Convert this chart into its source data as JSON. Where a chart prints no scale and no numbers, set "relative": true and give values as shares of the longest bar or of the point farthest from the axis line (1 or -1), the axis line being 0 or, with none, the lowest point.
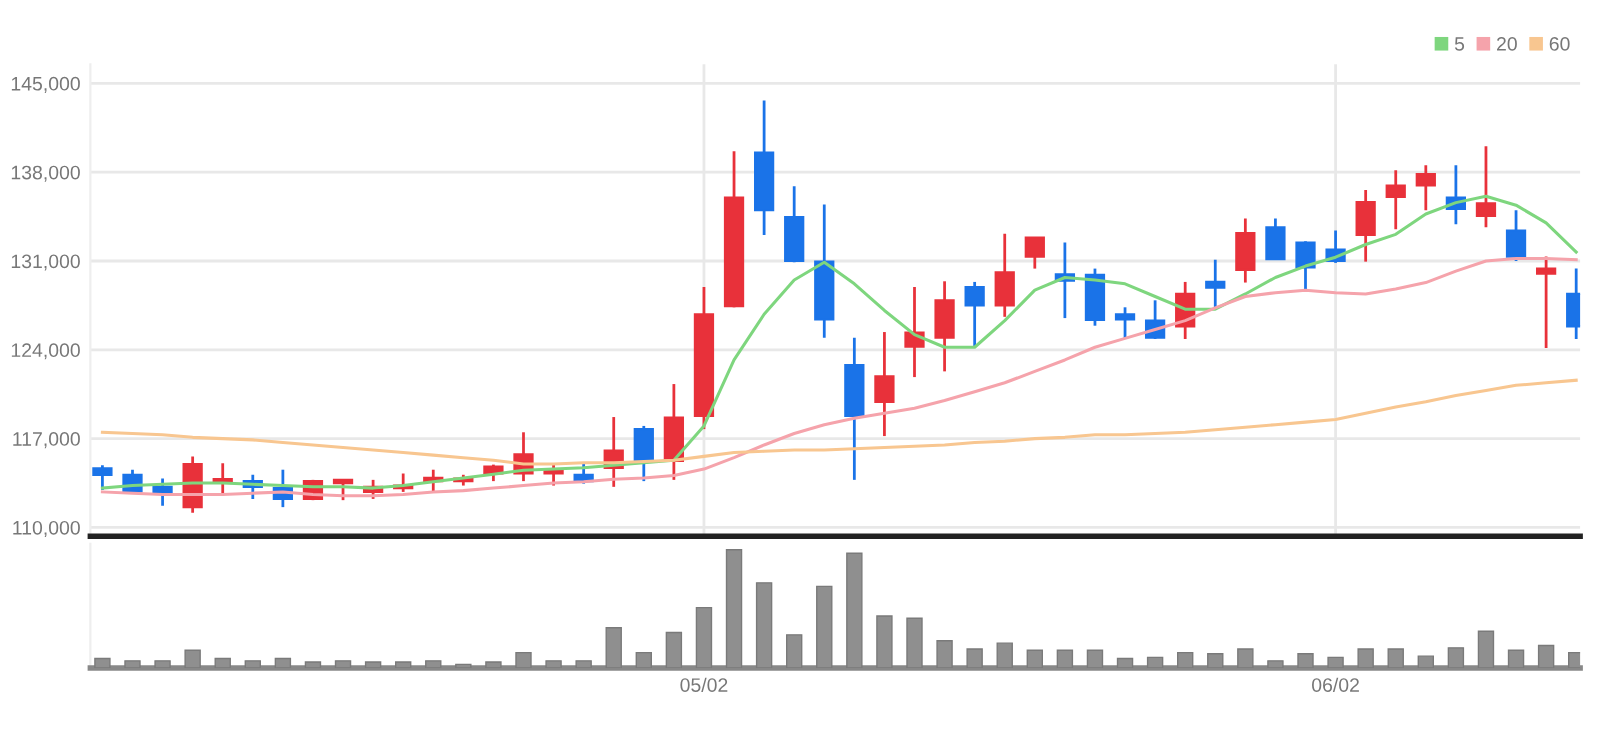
{
  "chart_data": [
    {
      "type": "candlestick",
      "categories": [
        null,
        null,
        null,
        null,
        null,
        null,
        null,
        null,
        null,
        null,
        null,
        null,
        null,
        null,
        null,
        null,
        null,
        null,
        null,
        null,
        null,
        null,
        null,
        null,
        null,
        null,
        null,
        null,
        null,
        null,
        null,
        null,
        null,
        null,
        null,
        null,
        null,
        null,
        null,
        null,
        null,
        null,
        null,
        null,
        null,
        null,
        null,
        null,
        null,
        null
      ],
      "ohlc": [
        [
          114650,
          114900,
          112950,
          114150
        ],
        [
          114150,
          114550,
          112650,
          112850
        ],
        [
          113200,
          113850,
          111700,
          112650
        ],
        [
          111600,
          115600,
          111150,
          115000
        ],
        [
          113600,
          115050,
          112650,
          113800
        ],
        [
          113650,
          114150,
          112250,
          113200
        ],
        [
          113100,
          114550,
          111600,
          112250
        ],
        [
          112250,
          113750,
          112150,
          113650
        ],
        [
          113500,
          113750,
          112150,
          113750
        ],
        [
          112800,
          113750,
          112250,
          113200
        ],
        [
          113100,
          114250,
          112800,
          113300
        ],
        [
          113650,
          114550,
          112800,
          113900
        ],
        [
          113650,
          114150,
          113300,
          113850
        ],
        [
          114250,
          114950,
          113650,
          114800
        ],
        [
          114250,
          117500,
          113650,
          115750
        ],
        [
          114250,
          115050,
          113300,
          114550
        ],
        [
          114150,
          115050,
          113450,
          113650
        ],
        [
          114700,
          118700,
          113200,
          116050
        ],
        [
          117750,
          118000,
          113650,
          115250
        ],
        [
          115250,
          121300,
          113750,
          118650
        ],
        [
          118800,
          128950,
          117750,
          126800
        ],
        [
          127450,
          139650,
          127350,
          136000
        ],
        [
          139550,
          143650,
          133050,
          135000
        ],
        [
          134450,
          136900,
          130900,
          131000
        ],
        [
          130950,
          135450,
          124950,
          126400
        ],
        [
          122800,
          124950,
          113750,
          118800
        ],
        [
          119900,
          125400,
          117200,
          121900
        ],
        [
          124250,
          128950,
          121850,
          125350
        ],
        [
          124950,
          129400,
          122300,
          127900
        ],
        [
          128950,
          129350,
          124300,
          127500
        ],
        [
          127500,
          133150,
          126600,
          130100
        ],
        [
          131350,
          132850,
          130400,
          132850
        ],
        [
          129950,
          132450,
          126500,
          129450
        ],
        [
          129900,
          130400,
          125900,
          126350
        ],
        [
          126800,
          127350,
          124850,
          126400
        ],
        [
          126300,
          127900,
          124850,
          124950
        ],
        [
          125850,
          129350,
          124850,
          128400
        ],
        [
          129350,
          131100,
          127350,
          128900
        ],
        [
          130300,
          134350,
          129300,
          133200
        ],
        [
          133650,
          134350,
          131150,
          131150
        ],
        [
          132450,
          132550,
          128600,
          130500
        ],
        [
          131900,
          133400,
          130850,
          131000
        ],
        [
          133050,
          136600,
          130950,
          135650
        ],
        [
          136050,
          138150,
          133500,
          136950
        ],
        [
          136950,
          138550,
          135000,
          137850
        ],
        [
          136000,
          138550,
          133900,
          135100
        ],
        [
          134550,
          140050,
          133650,
          135550
        ],
        [
          133400,
          135000,
          131000,
          131350
        ],
        [
          130000,
          131350,
          124150,
          130400
        ],
        [
          128400,
          130400,
          124850,
          125850
        ]
      ],
      "colors": [
        "#1a73e8",
        "#1a73e8",
        "#1a73e8",
        "#e8313a",
        "#e8313a",
        "#1a73e8",
        "#1a73e8",
        "#e8313a",
        "#e8313a",
        "#e8313a",
        "#e8313a",
        "#e8313a",
        "#e8313a",
        "#e8313a",
        "#e8313a",
        "#e8313a",
        "#1a73e8",
        "#e8313a",
        "#1a73e8",
        "#e8313a",
        "#e8313a",
        "#e8313a",
        "#1a73e8",
        "#1a73e8",
        "#1a73e8",
        "#1a73e8",
        "#e8313a",
        "#e8313a",
        "#e8313a",
        "#1a73e8",
        "#e8313a",
        "#e8313a",
        "#1a73e8",
        "#1a73e8",
        "#1a73e8",
        "#1a73e8",
        "#e8313a",
        "#1a73e8",
        "#e8313a",
        "#1a73e8",
        "#1a73e8",
        "#1a73e8",
        "#e8313a",
        "#e8313a",
        "#e8313a",
        "#1a73e8",
        "#e8313a",
        "#1a73e8",
        "#e8313a",
        "#1a73e8"
      ],
      "series": [
        {
          "name": "5",
          "type": "line",
          "color": "#7ed67e",
          "values": [
            113100,
            113300,
            113400,
            113500,
            113500,
            113400,
            113300,
            113200,
            113200,
            113100,
            113300,
            113600,
            113900,
            114200,
            114500,
            114600,
            114700,
            114900,
            115100,
            115300,
            118000,
            123200,
            126800,
            129500,
            130900,
            129200,
            127100,
            125200,
            124200,
            124200,
            126300,
            128700,
            129700,
            129500,
            129200,
            128200,
            127200,
            127200,
            128400,
            129700,
            130600,
            131300,
            132300,
            133100,
            134700,
            135600,
            136100,
            135400,
            134000,
            131700
          ]
        },
        {
          "name": "20",
          "type": "line",
          "color": "#f5a3ab",
          "values": [
            112800,
            112700,
            112600,
            112600,
            112600,
            112700,
            112800,
            112600,
            112500,
            112500,
            112600,
            112800,
            112900,
            113100,
            113300,
            113500,
            113600,
            113800,
            113900,
            114100,
            114600,
            115500,
            116500,
            117400,
            118100,
            118600,
            119000,
            119400,
            120000,
            120700,
            121400,
            122300,
            123200,
            124200,
            124900,
            125600,
            126300,
            127300,
            128200,
            128500,
            128700,
            128500,
            128400,
            128800,
            129300,
            130200,
            131000,
            131200,
            131200,
            131100
          ]
        },
        {
          "name": "60",
          "type": "line",
          "color": "#f8c690",
          "values": [
            117500,
            117400,
            117300,
            117100,
            117000,
            116900,
            116700,
            116500,
            116300,
            116100,
            115900,
            115700,
            115500,
            115300,
            115000,
            115000,
            115100,
            115100,
            115200,
            115300,
            115600,
            115900,
            116000,
            116100,
            116100,
            116200,
            116300,
            116400,
            116500,
            116700,
            116800,
            117000,
            117100,
            117300,
            117300,
            117400,
            117500,
            117700,
            117900,
            118100,
            118300,
            118500,
            119000,
            119500,
            119900,
            120400,
            120800,
            121200,
            121400,
            121600
          ]
        }
      ],
      "ylim": [
        109300,
        146500
      ],
      "yticks": [
        {
          "value": 110000,
          "label": "110,000"
        },
        {
          "value": 117000,
          "label": "117,000"
        },
        {
          "value": 124000,
          "label": "124,000"
        },
        {
          "value": 131000,
          "label": "131,000"
        },
        {
          "value": 138000,
          "label": "138,000"
        },
        {
          "value": 145000,
          "label": "145,000"
        }
      ],
      "grid": true,
      "legend": "top right",
      "tick_labels": "y"
    },
    {
      "type": "bar",
      "categories": [
        null,
        null,
        null,
        null,
        null,
        null,
        null,
        null,
        null,
        null,
        null,
        null,
        null,
        null,
        null,
        null,
        null,
        null,
        null,
        null,
        "05/02",
        null,
        null,
        null,
        null,
        null,
        null,
        null,
        null,
        null,
        null,
        null,
        null,
        null,
        null,
        null,
        null,
        null,
        null,
        null,
        null,
        "06/02",
        null,
        null,
        null,
        null,
        null,
        null,
        null,
        null
      ],
      "values": [
        0.08,
        0.06,
        0.06,
        0.15,
        0.08,
        0.06,
        0.08,
        0.05,
        0.06,
        0.05,
        0.05,
        0.06,
        0.03,
        0.05,
        0.13,
        0.06,
        0.06,
        0.34,
        0.13,
        0.3,
        0.51,
        1,
        0.72,
        0.28,
        0.69,
        0.97,
        0.44,
        0.42,
        0.23,
        0.16,
        0.21,
        0.15,
        0.15,
        0.15,
        0.08,
        0.09,
        0.13,
        0.12,
        0.16,
        0.06,
        0.12,
        0.09,
        0.16,
        0.16,
        0.1,
        0.17,
        0.31,
        0.15,
        0.19,
        0.13
      ],
      "color": "#8f8f8f",
      "relative": true,
      "tick_labels": "x"
    }
  ]
}
